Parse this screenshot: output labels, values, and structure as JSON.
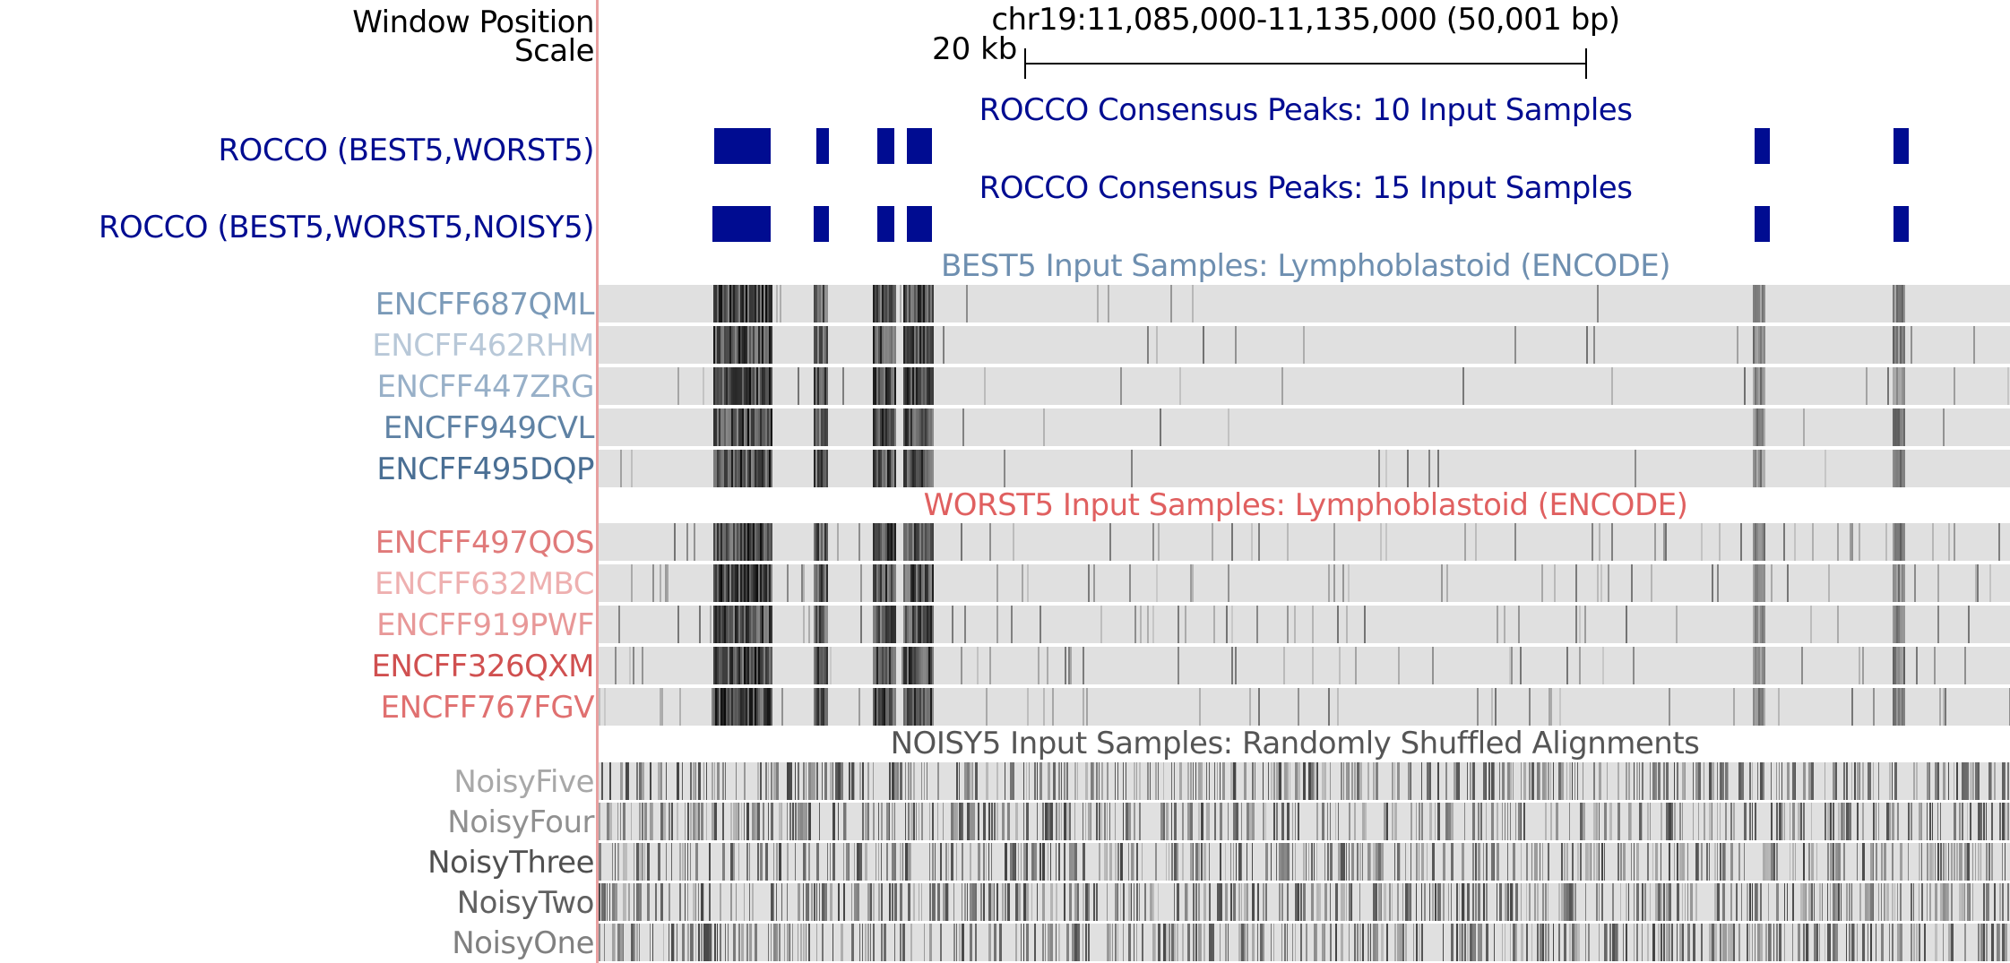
{
  "header": {
    "window_label": "Window Position",
    "scale_label": "Scale",
    "position_text": "chr19:11,085,000-11,135,000 (50,001 bp)",
    "scale_text": "20 kb"
  },
  "consensus": [
    {
      "title": "ROCCO Consensus Peaks: 10 Input Samples",
      "label": "ROCCO (BEST5,WORST5)"
    },
    {
      "title": "ROCCO Consensus Peaks: 15 Input Samples",
      "label": "ROCCO (BEST5,WORST5,NOISY5)"
    }
  ],
  "groups": {
    "best": {
      "title": "BEST5 Input Samples: Lymphoblastoid (ENCODE)",
      "tracks": [
        {
          "label": "ENCFF687QML",
          "color": "#7b9ab8"
        },
        {
          "label": "ENCFF462RHM",
          "color": "#b8c8d8"
        },
        {
          "label": "ENCFF447ZRG",
          "color": "#98b0c8"
        },
        {
          "label": "ENCFF949CVL",
          "color": "#5f82a4"
        },
        {
          "label": "ENCFF495DQP",
          "color": "#4a6f94"
        }
      ]
    },
    "worst": {
      "title": "WORST5 Input Samples: Lymphoblastoid (ENCODE)",
      "tracks": [
        {
          "label": "ENCFF497QOS",
          "color": "#e07a7a"
        },
        {
          "label": "ENCFF632MBC",
          "color": "#eeb0b0"
        },
        {
          "label": "ENCFF919PWF",
          "color": "#e89898"
        },
        {
          "label": "ENCFF326QXM",
          "color": "#d05050"
        },
        {
          "label": "ENCFF767FGV",
          "color": "#e07070"
        }
      ]
    },
    "noisy": {
      "title": "NOISY5 Input Samples: Randomly Shuffled Alignments",
      "tracks": [
        {
          "label": "NoisyFive",
          "color": "#a8a8a8"
        },
        {
          "label": "NoisyFour",
          "color": "#909090"
        },
        {
          "label": "NoisyThree",
          "color": "#505050"
        },
        {
          "label": "NoisyTwo",
          "color": "#606060"
        },
        {
          "label": "NoisyOne",
          "color": "#808080"
        }
      ]
    }
  },
  "colors": {
    "consensus": "#000c91",
    "best_title": "#6e8fb0",
    "worst_title": "#e06060",
    "noisy_title": "#555555",
    "track_bg": "#e0e0e0",
    "divider": "#e8a0a0"
  }
}
